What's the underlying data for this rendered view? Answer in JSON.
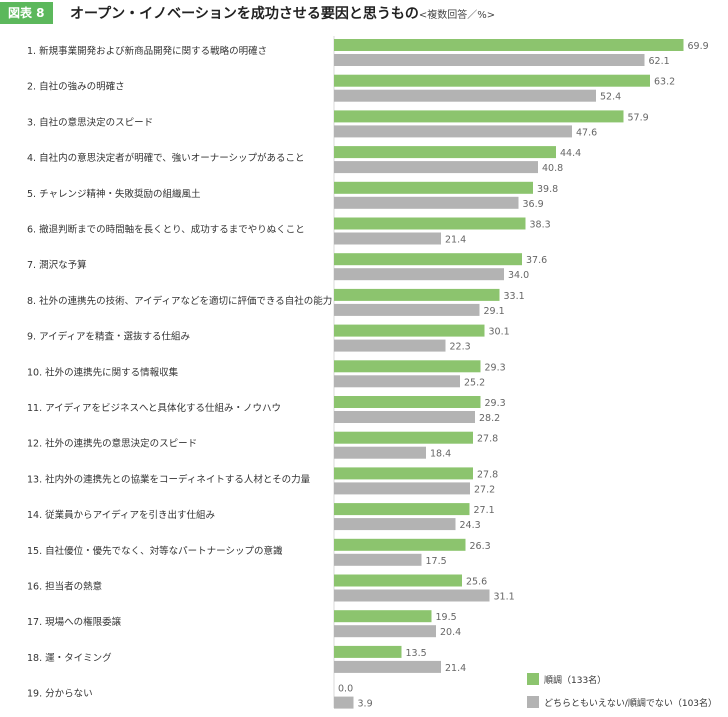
{
  "figure_label": "図表 8",
  "title": "オープン・イノベーションを成功させる要因と思うもの",
  "subtitle": "<複数回答／%>",
  "colors": {
    "series1": "#8cc46e",
    "series2": "#b3b3b3",
    "badge": "#5cb85c"
  },
  "chart_data": {
    "type": "bar",
    "orientation": "horizontal",
    "xlim": [
      0,
      70
    ],
    "grid": false,
    "legend_position": "bottom-right",
    "categories": [
      "1. 新規事業開発および新商品開発に関する戦略の明確さ",
      "2. 自社の強みの明確さ",
      "3. 自社の意思決定のスピード",
      "4. 自社内の意思決定者が明確で、強いオーナーシップがあること",
      "5. チャレンジ精神・失敗奨励の組織風土",
      "6. 撤退判断までの時間軸を長くとり、成功するまでやりぬくこと",
      "7. 潤沢な予算",
      "8. 社外の連携先の技術、アイディアなどを適切に評価できる自社の能力",
      "9. アイディアを精査・選抜する仕組み",
      "10. 社外の連携先に関する情報収集",
      "11. アイディアをビジネスへと具体化する仕組み・ノウハウ",
      "12. 社外の連携先の意思決定のスピード",
      "13. 社内外の連携先との協業をコーディネイトする人材とその力量",
      "14. 従業員からアイディアを引き出す仕組み",
      "15. 自社優位・優先でなく、対等なパートナーシップの意識",
      "16. 担当者の熱意",
      "17. 現場への権限委譲",
      "18. 運・タイミング",
      "19. 分からない"
    ],
    "series": [
      {
        "name": "順調（133名）",
        "values": [
          69.9,
          63.2,
          57.9,
          44.4,
          39.8,
          38.3,
          37.6,
          33.1,
          30.1,
          29.3,
          29.3,
          27.8,
          27.8,
          27.1,
          26.3,
          25.6,
          19.5,
          13.5,
          0.0
        ]
      },
      {
        "name": "どちらともいえない/順調でない（103名）",
        "values": [
          62.1,
          52.4,
          47.6,
          40.8,
          36.9,
          21.4,
          34.0,
          29.1,
          22.3,
          25.2,
          28.2,
          18.4,
          27.2,
          24.3,
          17.5,
          31.1,
          20.4,
          21.4,
          3.9
        ]
      }
    ],
    "value_labels": [
      [
        "69.9",
        "63.2",
        "57.9",
        "44.4",
        "39.8",
        "38.3",
        "37.6",
        "33.1",
        "30.1",
        "29.3",
        "29.3",
        "27.8",
        "27.8",
        "27.1",
        "26.3",
        "25.6",
        "19.5",
        "13.5",
        "0.0"
      ],
      [
        "62.1",
        "52.4",
        "47.6",
        "40.8",
        "36.9",
        "21.4",
        "34.0",
        "29.1",
        "22.3",
        "25.2",
        "28.2",
        "18.4",
        "27.2",
        "24.3",
        "17.5",
        "31.1",
        "20.4",
        "21.4",
        "3.9"
      ]
    ]
  }
}
